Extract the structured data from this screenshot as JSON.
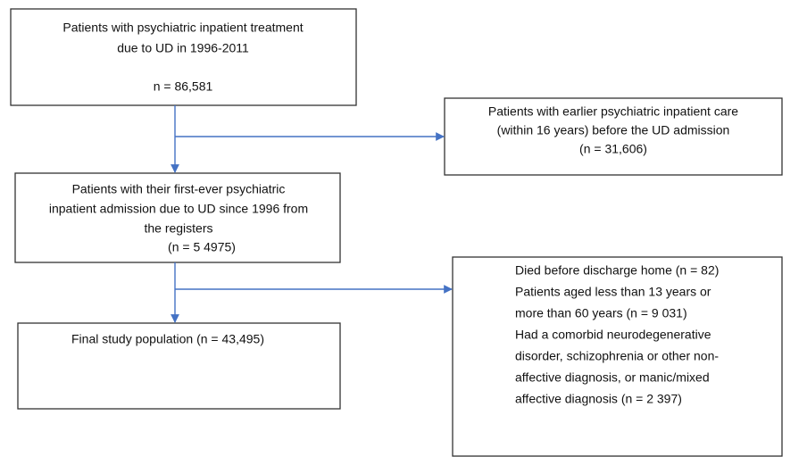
{
  "nodes": [
    {
      "lines": [
        "Patients with psychiatric inpatient treatment",
        "due to UD in 1996-2011",
        "n = 86,581"
      ]
    },
    {
      "lines": [
        "Patients with earlier psychiatric inpatient care",
        "(within 16 years) before the UD admission",
        "(n = 31,606)"
      ]
    },
    {
      "lines": [
        "Patients with their first-ever psychiatric",
        "inpatient admission due to UD since 1996 from",
        "the registers",
        "(n = 5 4975)"
      ]
    },
    {
      "lines": [
        "Died before discharge home (n = 82)",
        "Patients aged less than 13 years or",
        "more than 60 years (n = 9 031)",
        "Had a comorbid neurodegenerative",
        "disorder, schizophrenia or other non-",
        "affective diagnosis, or manic/mixed",
        "affective diagnosis (n = 2 397)"
      ]
    },
    {
      "lines": [
        "Final study population (n = 43,495)"
      ]
    }
  ]
}
